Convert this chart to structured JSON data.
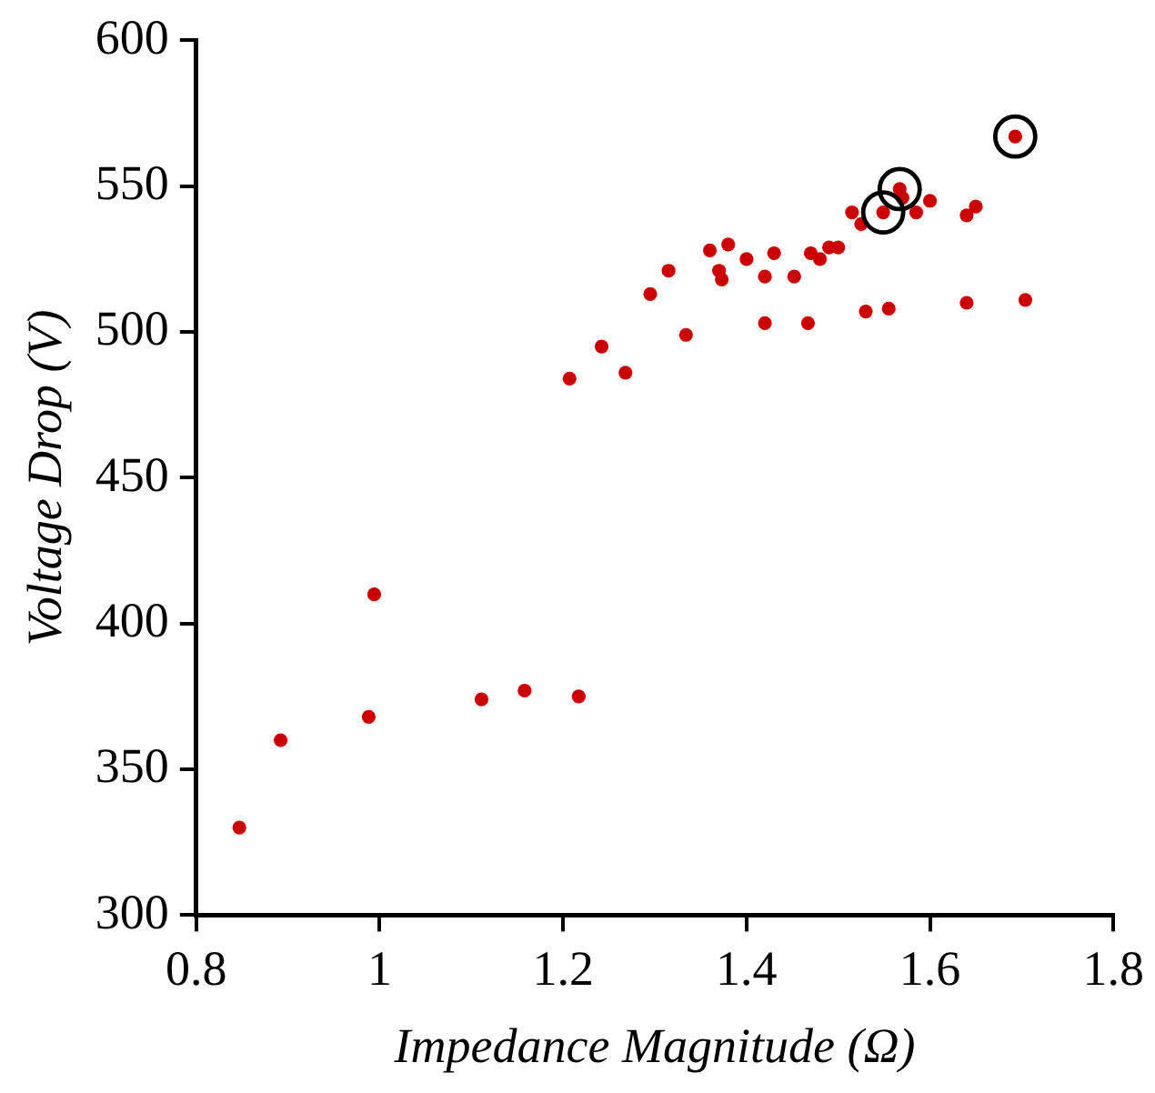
{
  "chart_data": {
    "type": "scatter",
    "xlabel": "Impedance Magnitude (Ω)",
    "ylabel": "Voltage Drop (V)",
    "xlim": [
      0.8,
      1.8
    ],
    "xticks": [
      {
        "value": 0.8,
        "label": "0.8"
      },
      1,
      {
        "value": 1.2,
        "label": "1.2"
      },
      {
        "value": 1.4,
        "label": "1.4"
      },
      {
        "value": 1.6,
        "label": "1.6"
      },
      {
        "value": 1.8,
        "label": "1.8"
      }
    ],
    "ylim": [
      300,
      600
    ],
    "yticks": [
      300,
      350,
      400,
      450,
      500,
      550,
      600
    ],
    "grid": false,
    "legend": false,
    "marker": "circle",
    "series": [
      {
        "color": "#cc0000",
        "x": [
          0.847,
          0.892,
          0.988,
          0.994,
          1.111,
          1.158,
          1.217,
          1.207,
          1.242,
          1.268,
          1.295,
          1.334,
          1.315,
          1.36,
          1.37,
          1.373,
          1.38,
          1.4,
          1.42,
          1.42,
          1.43,
          1.452,
          1.467,
          1.47,
          1.48,
          1.49,
          1.5,
          1.515,
          1.525,
          1.53,
          1.549,
          1.555,
          1.567,
          1.57,
          1.585,
          1.6,
          1.64,
          1.64,
          1.65,
          1.693,
          1.704
        ],
        "values": [
          330,
          360,
          368,
          410,
          374,
          377,
          375,
          484,
          495,
          486,
          513,
          499,
          521,
          528,
          521,
          518,
          530,
          525,
          519,
          503,
          527,
          519,
          503,
          527,
          525,
          529,
          529,
          541,
          537,
          507,
          541,
          508,
          549,
          546,
          541,
          545,
          510,
          540,
          543,
          567,
          511
        ]
      },
      {
        "color": "#000000",
        "x": [
          1.549,
          1.567,
          1.693
        ],
        "values": [
          541,
          549,
          567
        ]
      }
    ]
  }
}
